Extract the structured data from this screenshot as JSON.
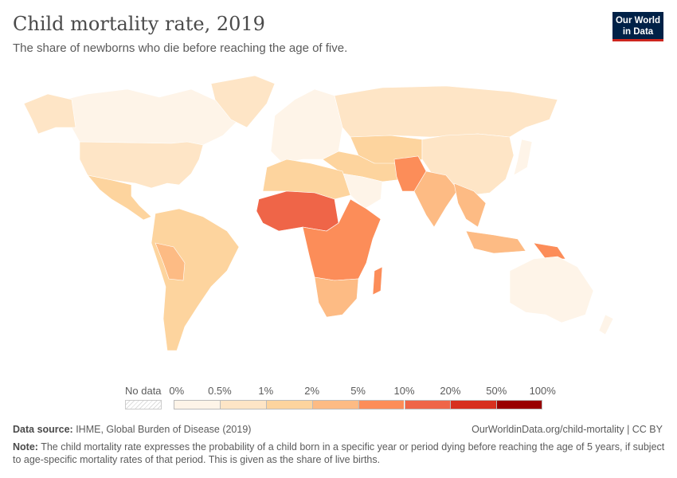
{
  "header": {
    "title": "Child mortality rate, 2019",
    "subtitle": "The share of newborns who die before reaching the age of five.",
    "logo": "Our World in Data",
    "logo_line1": "Our World",
    "logo_line2": "in Data"
  },
  "legend": {
    "no_data_label": "No data",
    "ticks": [
      "0%",
      "0.5%",
      "1%",
      "2%",
      "5%",
      "10%",
      "20%",
      "50%",
      "100%"
    ],
    "colors": [
      "#fef4e8",
      "#fee5c6",
      "#fdd49e",
      "#fdbb84",
      "#fc8d59",
      "#ef6548",
      "#d7301f",
      "#990000"
    ]
  },
  "map_regions": [
    {
      "name": "canada",
      "bin": 0
    },
    {
      "name": "alaska",
      "bin": 1
    },
    {
      "name": "greenland",
      "bin": 1
    },
    {
      "name": "usa",
      "bin": 1
    },
    {
      "name": "mexico-central-america",
      "bin": 2
    },
    {
      "name": "south-america",
      "bin": 2
    },
    {
      "name": "bolivia-peru",
      "bin": 3
    },
    {
      "name": "europe",
      "bin": 0
    },
    {
      "name": "russia",
      "bin": 1
    },
    {
      "name": "central-asia",
      "bin": 2
    },
    {
      "name": "china",
      "bin": 1
    },
    {
      "name": "middle-east",
      "bin": 2
    },
    {
      "name": "arabia",
      "bin": 0
    },
    {
      "name": "pakistan-afghanistan",
      "bin": 4
    },
    {
      "name": "india",
      "bin": 3
    },
    {
      "name": "southeast-asia",
      "bin": 3
    },
    {
      "name": "japan",
      "bin": 0
    },
    {
      "name": "north-africa",
      "bin": 2
    },
    {
      "name": "sahel-west-africa",
      "bin": 5
    },
    {
      "name": "central-east-africa",
      "bin": 4
    },
    {
      "name": "southern-africa",
      "bin": 3
    },
    {
      "name": "madagascar",
      "bin": 4
    },
    {
      "name": "indonesia",
      "bin": 3
    },
    {
      "name": "papua-new-guinea",
      "bin": 4
    },
    {
      "name": "australia",
      "bin": 0
    },
    {
      "name": "new-zealand",
      "bin": 0
    }
  ],
  "footer": {
    "source_label": "Data source:",
    "source_text": " IHME, Global Burden of Disease (2019)",
    "url": "OurWorldinData.org/child-mortality | CC BY",
    "note_label": "Note:",
    "note_text": " The child mortality rate expresses the probability of a child born in a specific year or period dying before reaching the age of 5 years, if subject to age-specific mortality rates of that period. This is given as the share of live births."
  }
}
